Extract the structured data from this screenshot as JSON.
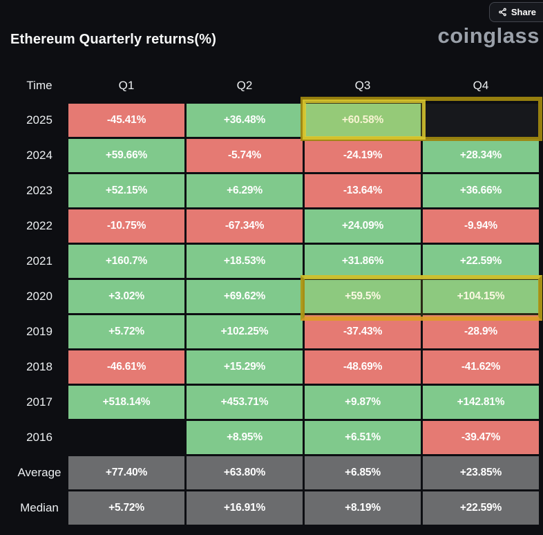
{
  "header": {
    "title": "Ethereum Quarterly returns(%)",
    "logo": "coinglass",
    "share_label": "Share",
    "share_icon": "share-nodes"
  },
  "table": {
    "columns": [
      "Time",
      "Q1",
      "Q2",
      "Q3",
      "Q4"
    ],
    "rows": [
      {
        "label": "2025",
        "cells": [
          {
            "value": "-45.41%",
            "type": "negative"
          },
          {
            "value": "+36.48%",
            "type": "positive"
          },
          {
            "value": "+60.58%",
            "type": "positive"
          },
          {
            "value": "",
            "type": "empty_dark"
          }
        ]
      },
      {
        "label": "2024",
        "cells": [
          {
            "value": "+59.66%",
            "type": "positive"
          },
          {
            "value": "-5.74%",
            "type": "negative"
          },
          {
            "value": "-24.19%",
            "type": "negative"
          },
          {
            "value": "+28.34%",
            "type": "positive"
          }
        ]
      },
      {
        "label": "2023",
        "cells": [
          {
            "value": "+52.15%",
            "type": "positive"
          },
          {
            "value": "+6.29%",
            "type": "positive"
          },
          {
            "value": "-13.64%",
            "type": "negative"
          },
          {
            "value": "+36.66%",
            "type": "positive"
          }
        ]
      },
      {
        "label": "2022",
        "cells": [
          {
            "value": "-10.75%",
            "type": "negative"
          },
          {
            "value": "-67.34%",
            "type": "negative"
          },
          {
            "value": "+24.09%",
            "type": "positive"
          },
          {
            "value": "-9.94%",
            "type": "negative"
          }
        ]
      },
      {
        "label": "2021",
        "cells": [
          {
            "value": "+160.7%",
            "type": "positive"
          },
          {
            "value": "+18.53%",
            "type": "positive"
          },
          {
            "value": "+31.86%",
            "type": "positive"
          },
          {
            "value": "+22.59%",
            "type": "positive"
          }
        ]
      },
      {
        "label": "2020",
        "cells": [
          {
            "value": "+3.02%",
            "type": "positive"
          },
          {
            "value": "+69.62%",
            "type": "positive"
          },
          {
            "value": "+59.5%",
            "type": "positive"
          },
          {
            "value": "+104.15%",
            "type": "positive"
          }
        ]
      },
      {
        "label": "2019",
        "cells": [
          {
            "value": "+5.72%",
            "type": "positive"
          },
          {
            "value": "+102.25%",
            "type": "positive"
          },
          {
            "value": "-37.43%",
            "type": "negative"
          },
          {
            "value": "-28.9%",
            "type": "negative"
          }
        ]
      },
      {
        "label": "2018",
        "cells": [
          {
            "value": "-46.61%",
            "type": "negative"
          },
          {
            "value": "+15.29%",
            "type": "positive"
          },
          {
            "value": "-48.69%",
            "type": "negative"
          },
          {
            "value": "-41.62%",
            "type": "negative"
          }
        ]
      },
      {
        "label": "2017",
        "cells": [
          {
            "value": "+518.14%",
            "type": "positive"
          },
          {
            "value": "+453.71%",
            "type": "positive"
          },
          {
            "value": "+9.87%",
            "type": "positive"
          },
          {
            "value": "+142.81%",
            "type": "positive"
          }
        ]
      },
      {
        "label": "2016",
        "cells": [
          {
            "value": "",
            "type": "none"
          },
          {
            "value": "+8.95%",
            "type": "positive"
          },
          {
            "value": "+6.51%",
            "type": "positive"
          },
          {
            "value": "-39.47%",
            "type": "negative"
          }
        ]
      },
      {
        "label": "Average",
        "cells": [
          {
            "value": "+77.40%",
            "type": "neutral"
          },
          {
            "value": "+63.80%",
            "type": "neutral"
          },
          {
            "value": "+6.85%",
            "type": "neutral"
          },
          {
            "value": "+23.85%",
            "type": "neutral"
          }
        ]
      },
      {
        "label": "Median",
        "cells": [
          {
            "value": "+5.72%",
            "type": "neutral"
          },
          {
            "value": "+16.91%",
            "type": "neutral"
          },
          {
            "value": "+8.19%",
            "type": "neutral"
          },
          {
            "value": "+22.59%",
            "type": "neutral"
          }
        ]
      }
    ]
  },
  "colors": {
    "positive": "#80c98c",
    "negative": "#e57a73",
    "neutral": "#6b6c6e",
    "empty_dark": "#17181c",
    "none": "transparent",
    "highlight_yellow": "#d8c531",
    "background": "#0d0e12"
  },
  "highlights": [
    {
      "name": "2025 Q3 cell boxed in bright yellow, Q3+Q4 boxed in dark yellow"
    },
    {
      "name": "2020 Q3+Q4 cells boxed in yellow"
    }
  ],
  "chart_data": {
    "type": "heatmap",
    "title": "Ethereum Quarterly returns(%)",
    "columns": [
      "Q1",
      "Q2",
      "Q3",
      "Q4"
    ],
    "rows": [
      "2025",
      "2024",
      "2023",
      "2022",
      "2021",
      "2020",
      "2019",
      "2018",
      "2017",
      "2016",
      "Average",
      "Median"
    ],
    "values_pct": [
      [
        -45.41,
        36.48,
        60.58,
        null
      ],
      [
        59.66,
        -5.74,
        -24.19,
        28.34
      ],
      [
        52.15,
        6.29,
        -13.64,
        36.66
      ],
      [
        -10.75,
        -67.34,
        24.09,
        -9.94
      ],
      [
        160.7,
        18.53,
        31.86,
        22.59
      ],
      [
        3.02,
        69.62,
        59.5,
        104.15
      ],
      [
        5.72,
        102.25,
        -37.43,
        -28.9
      ],
      [
        -46.61,
        15.29,
        -48.69,
        -41.62
      ],
      [
        518.14,
        453.71,
        9.87,
        142.81
      ],
      [
        null,
        8.95,
        6.51,
        -39.47
      ],
      [
        77.4,
        63.8,
        6.85,
        23.85
      ],
      [
        5.72,
        16.91,
        8.19,
        22.59
      ]
    ],
    "color_coding": {
      "positive": "green",
      "negative": "red",
      "summary_rows": "gray"
    },
    "annotations": [
      "yellow highlight box around 2025 Q3 (+60.58%) and empty 2025 Q4",
      "yellow highlight box around 2020 Q3 (+59.5%) and 2020 Q4 (+104.15%)"
    ]
  }
}
